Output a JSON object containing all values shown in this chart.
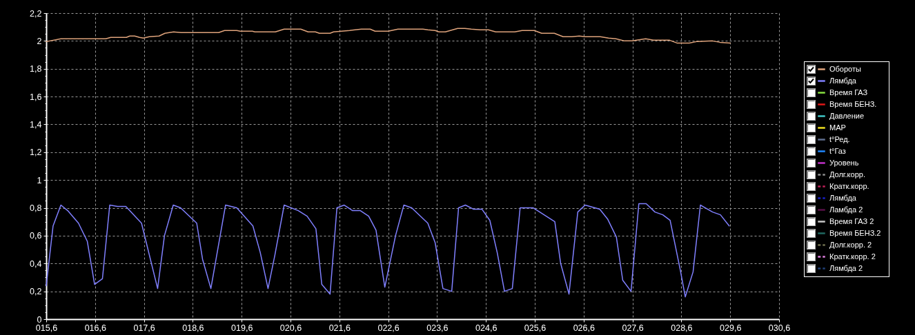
{
  "chart_data": {
    "type": "line",
    "xlim": [
      15.6,
      30.6
    ],
    "xticks": [
      {
        "value": 15.6,
        "label": "015,6"
      },
      {
        "value": 16.6,
        "label": "016,6"
      },
      {
        "value": 17.6,
        "label": "017,6"
      },
      {
        "value": 18.6,
        "label": "018,6"
      },
      {
        "value": 19.6,
        "label": "019,6"
      },
      {
        "value": 20.6,
        "label": "020,6"
      },
      {
        "value": 21.6,
        "label": "021,6"
      },
      {
        "value": 22.6,
        "label": "022,6"
      },
      {
        "value": 23.6,
        "label": "023,6"
      },
      {
        "value": 24.6,
        "label": "024,6"
      },
      {
        "value": 25.6,
        "label": "025,6"
      },
      {
        "value": 26.6,
        "label": "026,6"
      },
      {
        "value": 27.6,
        "label": "027,6"
      },
      {
        "value": 28.6,
        "label": "028,6"
      },
      {
        "value": 29.6,
        "label": "029,6"
      },
      {
        "value": 30.6,
        "label": "030,6"
      }
    ],
    "ylim": [
      0,
      2.2
    ],
    "yticks": [
      0,
      {
        "value": 0.05,
        "label": null
      },
      {
        "value": 0.1,
        "label": null
      },
      {
        "value": 0.15,
        "label": null
      },
      {
        "value": 0.2,
        "label": "0,2"
      },
      {
        "value": 0.25,
        "label": null
      },
      {
        "value": 0.3,
        "label": null
      },
      {
        "value": 0.35,
        "label": null
      },
      {
        "value": 0.4,
        "label": "0,4"
      },
      {
        "value": 0.45,
        "label": null
      },
      {
        "value": 0.5,
        "label": null
      },
      {
        "value": 0.55,
        "label": null
      },
      {
        "value": 0.6,
        "label": "0,6"
      },
      {
        "value": 0.65,
        "label": null
      },
      {
        "value": 0.7,
        "label": null
      },
      {
        "value": 0.75,
        "label": null
      },
      {
        "value": 0.8,
        "label": "0,8"
      },
      {
        "value": 0.85,
        "label": null
      },
      {
        "value": 0.9,
        "label": null
      },
      {
        "value": 0.95,
        "label": null
      },
      1,
      {
        "value": 1.05,
        "label": null
      },
      {
        "value": 1.1,
        "label": null
      },
      {
        "value": 1.15,
        "label": null
      },
      {
        "value": 1.2,
        "label": "1,2"
      },
      {
        "value": 1.25,
        "label": null
      },
      {
        "value": 1.3,
        "label": null
      },
      {
        "value": 1.35,
        "label": null
      },
      {
        "value": 1.4,
        "label": "1,4"
      },
      {
        "value": 1.45,
        "label": null
      },
      {
        "value": 1.5,
        "label": null
      },
      {
        "value": 1.55,
        "label": null
      },
      {
        "value": 1.6,
        "label": "1,6"
      },
      {
        "value": 1.65,
        "label": null
      },
      {
        "value": 1.7,
        "label": null
      },
      {
        "value": 1.75,
        "label": null
      },
      {
        "value": 1.8,
        "label": "1,8"
      },
      {
        "value": 1.85,
        "label": null
      },
      {
        "value": 1.9,
        "label": null
      },
      {
        "value": 1.95,
        "label": null
      },
      2,
      {
        "value": 2.05,
        "label": null
      },
      {
        "value": 2.1,
        "label": null
      },
      {
        "value": 2.15,
        "label": null
      },
      {
        "value": 2.2,
        "label": "2,2"
      }
    ],
    "grid": true,
    "legend": "right",
    "series": [
      {
        "name": "Обороты",
        "color": "#e0a47c",
        "x": [
          15.6,
          15.9,
          16.82,
          16.92,
          17.24,
          17.31,
          17.41,
          17.51,
          17.59,
          17.71,
          17.91,
          18.03,
          18.21,
          18.36,
          19.13,
          19.25,
          19.5,
          19.57,
          19.82,
          19.87,
          20.29,
          20.47,
          20.81,
          20.96,
          21.11,
          21.19,
          21.41,
          21.48,
          21.81,
          22.05,
          22.23,
          22.33,
          22.6,
          22.8,
          23.31,
          23.41,
          23.56,
          23.64,
          23.77,
          24.02,
          24.17,
          24.3,
          24.48,
          24.65,
          24.8,
          25.19,
          25.34,
          25.59,
          25.74,
          26.0,
          26.18,
          26.36,
          26.51,
          26.63,
          26.94,
          27.11,
          27.26,
          27.44,
          27.59,
          27.87,
          28.03,
          28.36,
          28.51,
          28.76,
          28.91,
          29.24,
          29.39,
          29.6
        ],
        "values": [
          1.995,
          2.015,
          2.015,
          2.025,
          2.025,
          2.035,
          2.035,
          2.025,
          2.02,
          2.03,
          2.035,
          2.055,
          2.065,
          2.06,
          2.06,
          2.075,
          2.075,
          2.07,
          2.07,
          2.065,
          2.065,
          2.085,
          2.085,
          2.065,
          2.065,
          2.055,
          2.055,
          2.065,
          2.075,
          2.085,
          2.085,
          2.07,
          2.07,
          2.085,
          2.085,
          2.08,
          2.075,
          2.065,
          2.065,
          2.09,
          2.09,
          2.085,
          2.08,
          2.08,
          2.065,
          2.065,
          2.075,
          2.075,
          2.055,
          2.055,
          2.03,
          2.03,
          2.035,
          2.03,
          2.03,
          2.02,
          2.015,
          2.0,
          2.0,
          2.015,
          2.005,
          2.005,
          1.985,
          1.985,
          1.995,
          2.0,
          1.99,
          1.985
        ]
      },
      {
        "name": "Лямбда",
        "color": "#8080ff",
        "x": [
          15.6,
          15.74,
          15.9,
          16.04,
          16.26,
          16.44,
          16.59,
          16.75,
          16.9,
          17.06,
          17.23,
          17.55,
          17.88,
          18.02,
          18.2,
          18.35,
          18.68,
          18.8,
          18.97,
          19.27,
          19.5,
          19.83,
          19.98,
          20.14,
          20.28,
          20.47,
          20.76,
          20.94,
          21.12,
          21.24,
          21.41,
          21.55,
          21.7,
          21.87,
          22.03,
          22.2,
          22.35,
          22.53,
          22.75,
          22.92,
          23.08,
          23.41,
          23.56,
          23.72,
          23.9,
          24.04,
          24.18,
          24.35,
          24.52,
          24.68,
          24.83,
          24.98,
          25.14,
          25.3,
          25.57,
          26.01,
          26.13,
          26.3,
          26.48,
          26.63,
          26.93,
          27.09,
          27.27,
          27.4,
          27.57,
          27.73,
          27.88,
          28.06,
          28.22,
          28.37,
          28.58,
          28.68,
          28.84,
          28.99,
          29.24,
          29.4,
          29.58
        ],
        "values": [
          0.24,
          0.67,
          0.82,
          0.78,
          0.69,
          0.56,
          0.25,
          0.29,
          0.82,
          0.81,
          0.81,
          0.69,
          0.22,
          0.6,
          0.82,
          0.8,
          0.69,
          0.43,
          0.22,
          0.82,
          0.8,
          0.67,
          0.48,
          0.22,
          0.46,
          0.82,
          0.78,
          0.74,
          0.65,
          0.25,
          0.18,
          0.8,
          0.82,
          0.78,
          0.78,
          0.74,
          0.64,
          0.23,
          0.6,
          0.82,
          0.8,
          0.69,
          0.55,
          0.22,
          0.2,
          0.8,
          0.82,
          0.79,
          0.79,
          0.71,
          0.48,
          0.2,
          0.22,
          0.8,
          0.8,
          0.7,
          0.4,
          0.18,
          0.77,
          0.82,
          0.79,
          0.72,
          0.59,
          0.28,
          0.2,
          0.83,
          0.83,
          0.77,
          0.75,
          0.71,
          0.35,
          0.16,
          0.34,
          0.82,
          0.77,
          0.75,
          0.67
        ]
      },
      {
        "name": "Время ГАЗ",
        "color": "#88e040"
      },
      {
        "name": "Время БЕНЗ.",
        "color": "#e01818"
      },
      {
        "name": "Давление",
        "color": "#40c8c8"
      },
      {
        "name": "МАР",
        "color": "#f0e020"
      },
      {
        "name": "t°Ред.",
        "color": "#607090"
      },
      {
        "name": "t°Газ",
        "color": "#2088ff"
      },
      {
        "name": "Уровень",
        "color": "#c030c8"
      },
      {
        "name": "Долг.корр.",
        "color": "#909090",
        "line_style": "dashed"
      },
      {
        "name": "Кратк.корр.",
        "color": "#c02058",
        "line_style": "dashed"
      },
      {
        "name": "Лямбда",
        "color": "#1820c8",
        "line_style": "dashed"
      },
      {
        "name": "Ламбда 2",
        "color": "#581048"
      },
      {
        "name": "Время ГАЗ 2",
        "color": "#c8c8c8"
      },
      {
        "name": "Время БЕНЗ.2",
        "color": "#206860"
      },
      {
        "name": "Долг.корр. 2",
        "color": "#707050",
        "line_style": "dashed"
      },
      {
        "name": "Кратк.корр. 2",
        "color": "#e080e0",
        "line_style": "dashed"
      },
      {
        "name": "Лямбда 2",
        "color": "#204078",
        "line_style": "dashed"
      }
    ]
  }
}
